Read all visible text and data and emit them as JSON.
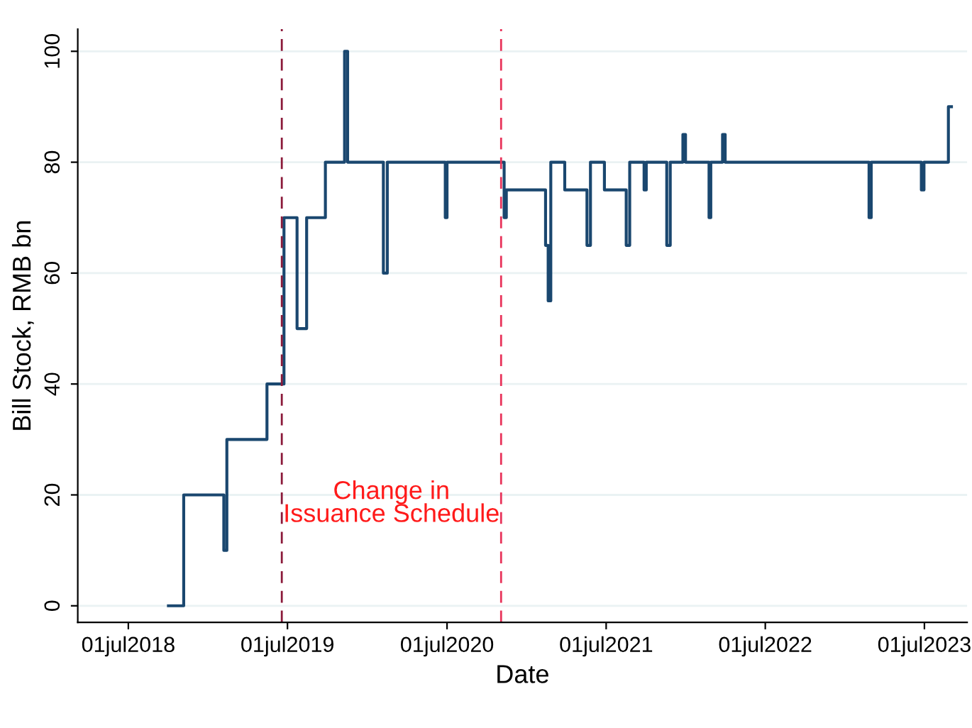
{
  "chart_data": {
    "type": "step",
    "xlabel": "Date",
    "ylabel": "Bill Stock, RMB bn",
    "x": [
      "2018-10-01",
      "2018-11-05",
      "2019-02-05",
      "2019-02-12",
      "2019-05-15",
      "2019-06-23",
      "2019-07-23",
      "2019-08-14",
      "2019-09-26",
      "2019-11-09",
      "2019-11-16",
      "2020-02-06",
      "2020-02-15",
      "2020-06-27",
      "2020-07-01",
      "2020-11-09",
      "2020-11-14",
      "2021-02-12",
      "2021-02-18",
      "2021-02-24",
      "2021-03-28",
      "2021-05-18",
      "2021-05-26",
      "2021-06-27",
      "2021-08-16",
      "2021-08-24",
      "2021-09-26",
      "2021-10-01",
      "2021-11-17",
      "2021-11-25",
      "2021-12-24",
      "2021-12-30",
      "2022-02-22",
      "2022-02-26",
      "2022-03-25",
      "2022-03-31",
      "2023-02-24",
      "2023-03-01",
      "2023-06-24",
      "2023-06-30",
      "2023-08-25",
      "2023-09-01"
    ],
    "series": [
      {
        "color": "#1a476f",
        "values": [
          0,
          20,
          10,
          30,
          40,
          70,
          50,
          70,
          80,
          100,
          80,
          60,
          80,
          70,
          80,
          70,
          75,
          65,
          55,
          80,
          75,
          65,
          80,
          75,
          65,
          80,
          75,
          80,
          65,
          80,
          85,
          80,
          70,
          80,
          85,
          80,
          70,
          80,
          75,
          80,
          90,
          90
        ]
      }
    ],
    "xlim": [
      "2018-03-07",
      "2023-10-07"
    ],
    "xticks": [
      {
        "value": "2018-07-01",
        "label": "01jul2018"
      },
      {
        "value": "2019-07-01",
        "label": "01jul2019"
      },
      {
        "value": "2020-07-01",
        "label": "01jul2020"
      },
      {
        "value": "2021-07-01",
        "label": "01jul2021"
      },
      {
        "value": "2022-07-01",
        "label": "01jul2022"
      },
      {
        "value": "2023-07-01",
        "label": "01jul2023"
      }
    ],
    "ylim": [
      -3,
      104
    ],
    "yticks": [
      0,
      20,
      40,
      60,
      80,
      100
    ],
    "grid": "y",
    "ref_lines": [
      {
        "axis": "x",
        "value": "2019-06-18",
        "color": "#8b1a3a",
        "line_style": "dashed"
      },
      {
        "axis": "x",
        "value": "2020-11-02",
        "color": "#e8335a",
        "line_style": "dashed"
      }
    ],
    "annotations": [
      "Change in\nIssuance Schedule"
    ]
  }
}
